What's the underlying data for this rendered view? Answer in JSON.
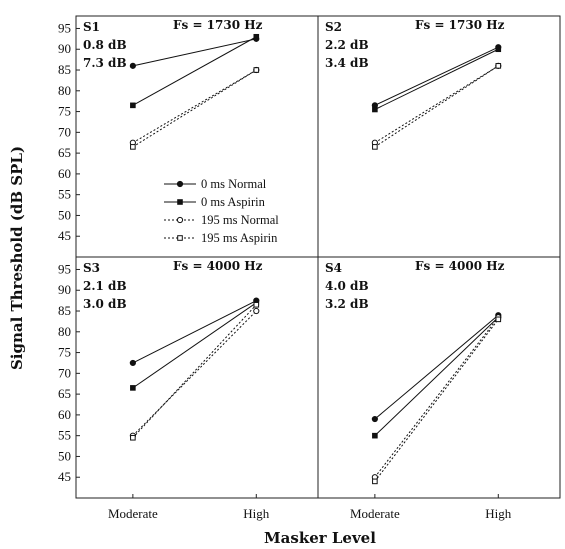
{
  "chart_data": {
    "type": "line",
    "xlabel": "Masker Level",
    "ylabel": "Signal Threshold (dB SPL)",
    "categories": [
      "Moderate",
      "High"
    ],
    "yticks": [
      45,
      50,
      55,
      60,
      65,
      70,
      75,
      80,
      85,
      90,
      95
    ],
    "ylim": [
      40,
      98
    ],
    "grid": false,
    "legend": {
      "placement": "inside panel S1, lower-middle",
      "entries": [
        "0 ms Normal",
        "0 ms Aspirin",
        "195 ms Normal",
        "195 ms Aspirin"
      ]
    },
    "panels": [
      {
        "label": "S1",
        "fs": "Fs = 1730 Hz",
        "notes": [
          "0.8 dB",
          "7.3 dB"
        ],
        "series": [
          {
            "name": "0 ms Normal",
            "values": [
              86,
              92.5
            ]
          },
          {
            "name": "0 ms Aspirin",
            "values": [
              76.5,
              93
            ]
          },
          {
            "name": "195 ms Normal",
            "values": [
              67.5,
              85
            ]
          },
          {
            "name": "195 ms Aspirin",
            "values": [
              66.5,
              85
            ]
          }
        ]
      },
      {
        "label": "S2",
        "fs": "Fs = 1730 Hz",
        "notes": [
          "2.2 dB",
          "3.4 dB"
        ],
        "series": [
          {
            "name": "0 ms Normal",
            "values": [
              76.5,
              90.5
            ]
          },
          {
            "name": "0 ms Aspirin",
            "values": [
              75.5,
              90
            ]
          },
          {
            "name": "195 ms Normal",
            "values": [
              67.5,
              86
            ]
          },
          {
            "name": "195 ms Aspirin",
            "values": [
              66.5,
              86
            ]
          }
        ]
      },
      {
        "label": "S3",
        "fs": "Fs = 4000 Hz",
        "notes": [
          "2.1 dB",
          "3.0 dB"
        ],
        "series": [
          {
            "name": "0 ms Normal",
            "values": [
              72.5,
              87.5
            ]
          },
          {
            "name": "0 ms Aspirin",
            "values": [
              66.5,
              87
            ]
          },
          {
            "name": "195 ms Normal",
            "values": [
              55,
              85
            ]
          },
          {
            "name": "195 ms Aspirin",
            "values": [
              54.5,
              86.5
            ]
          }
        ]
      },
      {
        "label": "S4",
        "fs": "Fs = 4000 Hz",
        "notes": [
          "4.0 dB",
          "3.2 dB"
        ],
        "series": [
          {
            "name": "0 ms Normal",
            "values": [
              59,
              84
            ]
          },
          {
            "name": "0 ms Aspirin",
            "values": [
              55,
              83.5
            ]
          },
          {
            "name": "195 ms Normal",
            "values": [
              45,
              83.5
            ]
          },
          {
            "name": "195 ms Aspirin",
            "values": [
              44,
              83
            ]
          }
        ]
      }
    ],
    "colors": {
      "line": "#111111",
      "axis": "#222222"
    }
  }
}
